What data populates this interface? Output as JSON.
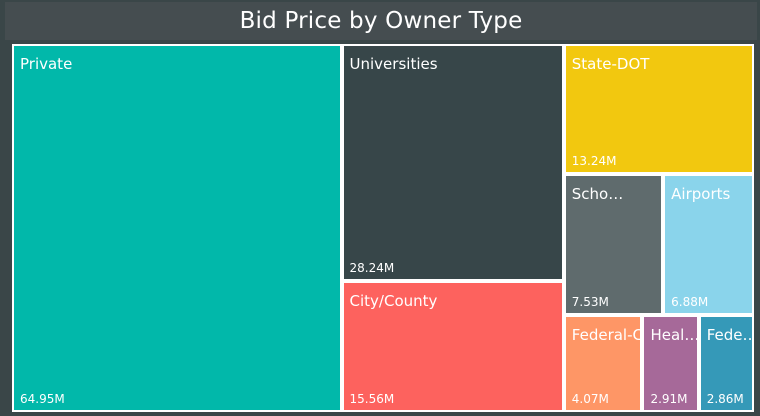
{
  "chart_data": {
    "type": "treemap",
    "title": "Bid Price by Owner Type",
    "items": [
      {
        "name": "Private",
        "label": "Private",
        "value_label": "64.95M",
        "value": 64.95,
        "color": "#01b8aa"
      },
      {
        "name": "Universities",
        "label": "Universities",
        "value_label": "28.24M",
        "value": 28.24,
        "color": "#374649"
      },
      {
        "name": "City/County",
        "label": "City/County",
        "value_label": "15.56M",
        "value": 15.56,
        "color": "#fd625e"
      },
      {
        "name": "State-DOT",
        "label": "State-DOT",
        "value_label": "13.24M",
        "value": 13.24,
        "color": "#f2c80f"
      },
      {
        "name": "Scho…",
        "label": "Scho…",
        "value_label": "7.53M",
        "value": 7.53,
        "color": "#5f6b6d"
      },
      {
        "name": "Airports",
        "label": "Airports",
        "value_label": "6.88M",
        "value": 6.88,
        "color": "#8ad4eb"
      },
      {
        "name": "Federal-COE",
        "label": "Federal-COE",
        "value_label": "4.07M",
        "value": 4.07,
        "color": "#fe9666"
      },
      {
        "name": "Heal…",
        "label": "Heal…",
        "value_label": "2.91M",
        "value": 2.91,
        "color": "#a66999"
      },
      {
        "name": "Fede…",
        "label": "Fede…",
        "value_label": "2.86M",
        "value": 2.86,
        "color": "#3599b8"
      }
    ]
  }
}
